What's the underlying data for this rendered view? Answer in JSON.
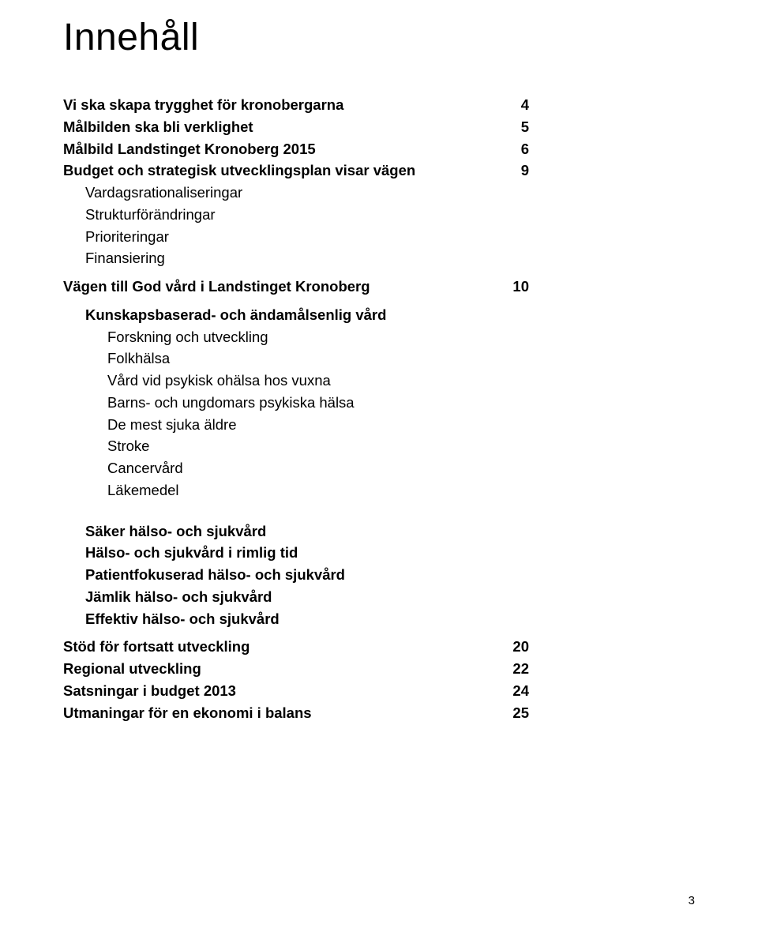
{
  "title": "Innehåll",
  "toc": {
    "r1": {
      "label": "Vi ska skapa trygghet för kronobergarna",
      "page": "4"
    },
    "r2": {
      "label": "Målbilden ska bli verklighet",
      "page": "5"
    },
    "r3": {
      "label": "Målbild Landstinget Kronoberg 2015",
      "page": "6"
    },
    "r4": {
      "label": "Budget och strategisk utvecklingsplan visar vägen",
      "page": "9"
    },
    "sub1": {
      "a": "Vardagsrationaliseringar",
      "b": "Strukturförändringar",
      "c": "Prioriteringar",
      "d": "Finansiering"
    },
    "r5": {
      "label": "Vägen till God vård i Landstinget Kronoberg",
      "page": "10"
    },
    "sub2": {
      "a": "Kunskapsbaserad- och ändamålsenlig vård",
      "b": "Forskning och utveckling",
      "c": "Folkhälsa",
      "d": "Vård vid psykisk ohälsa hos vuxna",
      "e": "Barns- och ungdomars psykiska hälsa",
      "f": "De mest sjuka äldre",
      "g": "Stroke",
      "h": "Cancervård",
      "i": "Läkemedel"
    },
    "sub3": {
      "a": "Säker hälso- och sjukvård",
      "b": "Hälso- och sjukvård i rimlig tid",
      "c": "Patientfokuserad hälso- och sjukvård",
      "d": "Jämlik hälso- och sjukvård",
      "e": "Effektiv hälso- och sjukvård"
    },
    "r6": {
      "label": "Stöd för fortsatt utveckling",
      "page": "20"
    },
    "r7": {
      "label": "Regional utveckling",
      "page": "22"
    },
    "r8": {
      "label": "Satsningar i budget 2013",
      "page": "24"
    },
    "r9": {
      "label": "Utmaningar för en ekonomi i balans",
      "page": "25"
    }
  },
  "footer": "3",
  "colors": {
    "background": "#ffffff",
    "text": "#000000"
  },
  "typography": {
    "title_fontsize": 48,
    "body_fontsize": 18.5,
    "footer_fontsize": 15,
    "font_family": "Arial, Helvetica, sans-serif"
  }
}
